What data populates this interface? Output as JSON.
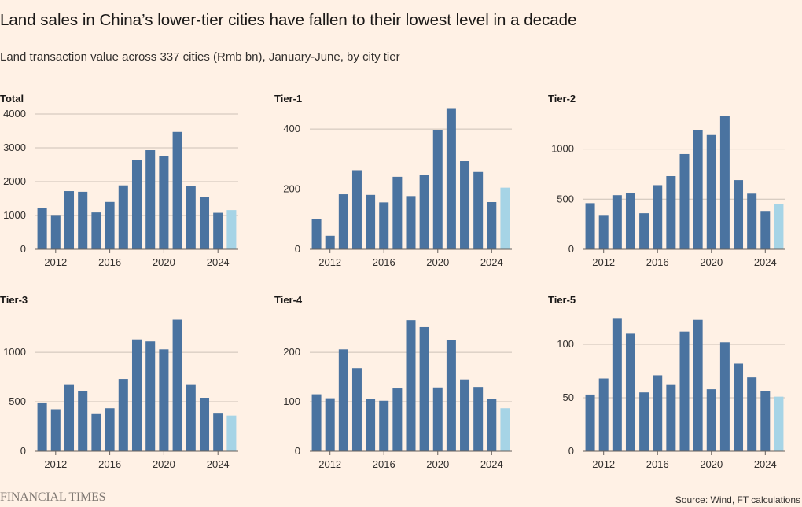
{
  "title": "Land sales in China’s lower-tier cities have fallen to their lowest level in a decade",
  "subtitle": "Land transaction value across 337 cities (Rmb bn), January-June, by city tier",
  "source": "Source: Wind, FT calculations",
  "logo_text": "FINANCIAL TIMES",
  "colors": {
    "bar": "#4a73a0",
    "bar_latest": "#a6d4e6",
    "grid": "#ccc1b7",
    "axis": "#66605c"
  },
  "chart_data": [
    {
      "type": "bar",
      "title": "Total",
      "x": [
        2011,
        2012,
        2013,
        2014,
        2015,
        2016,
        2017,
        2018,
        2019,
        2020,
        2021,
        2022,
        2023,
        2024,
        2025
      ],
      "values": [
        1220,
        990,
        1720,
        1700,
        1090,
        1400,
        1890,
        2640,
        2930,
        2760,
        3470,
        1880,
        1550,
        1080,
        1160
      ],
      "xticks": [
        "2012",
        "2016",
        "2020",
        "2024"
      ],
      "ylim": [
        0,
        4000
      ],
      "yticks": [
        0,
        1000,
        2000,
        3000,
        4000
      ]
    },
    {
      "type": "bar",
      "title": "Tier-1",
      "x": [
        2011,
        2012,
        2013,
        2014,
        2015,
        2016,
        2017,
        2018,
        2019,
        2020,
        2021,
        2022,
        2023,
        2024,
        2025
      ],
      "values": [
        100,
        45,
        183,
        263,
        181,
        156,
        241,
        177,
        248,
        397,
        467,
        293,
        257,
        157,
        205
      ],
      "xticks": [
        "2012",
        "2016",
        "2020",
        "2024"
      ],
      "ylim": [
        0,
        450
      ],
      "yticks": [
        0,
        200,
        400
      ]
    },
    {
      "type": "bar",
      "title": "Tier-2",
      "x": [
        2011,
        2012,
        2013,
        2014,
        2015,
        2016,
        2017,
        2018,
        2019,
        2020,
        2021,
        2022,
        2023,
        2024,
        2025
      ],
      "values": [
        460,
        335,
        540,
        560,
        360,
        640,
        730,
        950,
        1190,
        1140,
        1330,
        690,
        555,
        375,
        455
      ],
      "xticks": [
        "2012",
        "2016",
        "2020",
        "2024"
      ],
      "ylim": [
        0,
        1350
      ],
      "yticks": [
        0,
        500,
        1000
      ]
    },
    {
      "type": "bar",
      "title": "Tier-3",
      "x": [
        2011,
        2012,
        2013,
        2014,
        2015,
        2016,
        2017,
        2018,
        2019,
        2020,
        2021,
        2022,
        2023,
        2024,
        2025
      ],
      "values": [
        485,
        425,
        670,
        610,
        375,
        435,
        730,
        1130,
        1110,
        1030,
        1330,
        670,
        540,
        380,
        360
      ],
      "xticks": [
        "2012",
        "2016",
        "2020",
        "2024"
      ],
      "ylim": [
        0,
        1350
      ],
      "yticks": [
        0,
        500,
        1000
      ]
    },
    {
      "type": "bar",
      "title": "Tier-4",
      "x": [
        2011,
        2012,
        2013,
        2014,
        2015,
        2016,
        2017,
        2018,
        2019,
        2020,
        2021,
        2022,
        2023,
        2024,
        2025
      ],
      "values": [
        115,
        107,
        206,
        168,
        105,
        102,
        127,
        265,
        251,
        129,
        224,
        145,
        130,
        106,
        87
      ],
      "xticks": [
        "2012",
        "2016",
        "2020",
        "2024"
      ],
      "ylim": [
        0,
        270
      ],
      "yticks": [
        0,
        100,
        200
      ]
    },
    {
      "type": "bar",
      "title": "Tier-5",
      "x": [
        2011,
        2012,
        2013,
        2014,
        2015,
        2016,
        2017,
        2018,
        2019,
        2020,
        2021,
        2022,
        2023,
        2024,
        2025
      ],
      "values": [
        53,
        68,
        124,
        110,
        55,
        71,
        62,
        112,
        123,
        58,
        102,
        82,
        69,
        56,
        51
      ],
      "xticks": [
        "2012",
        "2016",
        "2020",
        "2024"
      ],
      "ylim": [
        0,
        125
      ],
      "yticks": [
        0,
        50,
        100
      ]
    }
  ]
}
